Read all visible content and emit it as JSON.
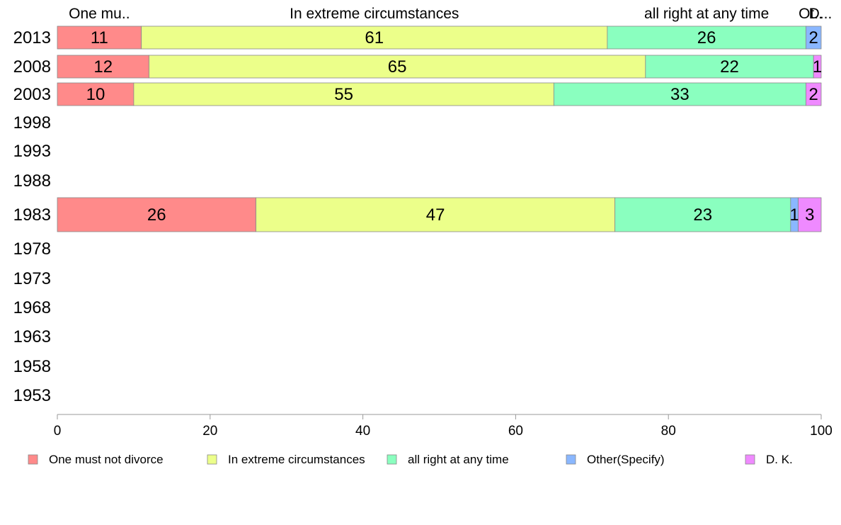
{
  "chart_data": {
    "type": "bar",
    "orientation": "horizontal",
    "stacked": true,
    "categories": [
      "2013",
      "2008",
      "2003",
      "1998",
      "1993",
      "1988",
      "1983",
      "1978",
      "1973",
      "1968",
      "1963",
      "1958",
      "1953"
    ],
    "series": [
      {
        "name": "One must not divorce",
        "color": "#ff8a8a",
        "values": [
          11,
          12,
          10,
          null,
          null,
          null,
          26,
          null,
          null,
          null,
          null,
          null,
          null
        ]
      },
      {
        "name": "In extreme circumstances",
        "color": "#ecff8a",
        "values": [
          61,
          65,
          55,
          null,
          null,
          null,
          47,
          null,
          null,
          null,
          null,
          null,
          null
        ]
      },
      {
        "name": "all right at any time",
        "color": "#8affbf",
        "values": [
          26,
          22,
          33,
          null,
          null,
          null,
          23,
          null,
          null,
          null,
          null,
          null,
          null
        ]
      },
      {
        "name": "Other(Specify)",
        "color": "#8ab7ff",
        "values": [
          2,
          0,
          0,
          null,
          null,
          null,
          1,
          null,
          null,
          null,
          null,
          null,
          null
        ]
      },
      {
        "name": "D. K.",
        "color": "#ef8aff",
        "values": [
          0,
          1,
          2,
          null,
          null,
          null,
          3,
          null,
          null,
          null,
          null,
          null,
          null
        ]
      }
    ],
    "top_labels": [
      "One mu..",
      "In extreme circumstances",
      "all right at any time",
      "Ot..",
      "D..."
    ],
    "xlim": [
      0,
      100
    ],
    "xticks": [
      0,
      20,
      40,
      60,
      80,
      100
    ],
    "xlabel": "",
    "ylabel": "",
    "title": "",
    "legend_position": "bottom",
    "grid": false
  }
}
